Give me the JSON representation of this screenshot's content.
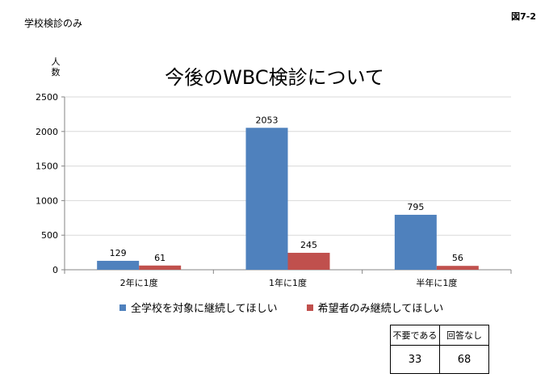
{
  "caption": "学校検診のみ",
  "figure_number": "図7-2",
  "chart_data": {
    "type": "bar",
    "title": "今後のWBC検診について",
    "ylabel": "人数",
    "xlabel": "",
    "ylim": [
      0,
      2500
    ],
    "yticks": [
      0,
      500,
      1000,
      1500,
      2000,
      2500
    ],
    "grid": true,
    "categories": [
      "2年に1度",
      "1年に1度",
      "半年に1度"
    ],
    "series": [
      {
        "name": "全学校を対象に継続してほしい",
        "color": "#4F81BD",
        "values": [
          129,
          2053,
          795
        ]
      },
      {
        "name": "希望者のみ継続してほしい",
        "color": "#C0504D",
        "values": [
          61,
          245,
          56
        ]
      }
    ],
    "legend_position": "bottom"
  },
  "tally": {
    "headers": [
      "不要である",
      "回答なし"
    ],
    "values": [
      "33",
      "68"
    ]
  }
}
